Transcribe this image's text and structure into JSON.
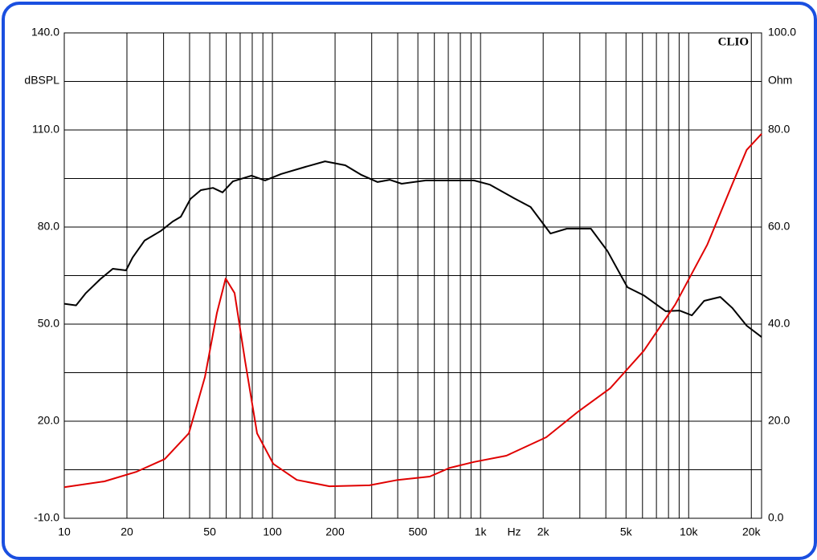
{
  "chart_data": {
    "type": "line",
    "watermark": "CLIO",
    "y_label": "dBSPL",
    "y2_label": "Ohm",
    "x_label": "Hz",
    "log_x": true,
    "grid": true,
    "xlim": [
      10,
      22400
    ],
    "xticks": [
      10,
      20,
      50,
      100,
      200,
      500,
      {
        "value": 1000,
        "label": "1k"
      },
      {
        "value": 2000,
        "label": "2k"
      },
      {
        "value": 5000,
        "label": "5k"
      },
      {
        "value": 10000,
        "label": "10k"
      },
      {
        "value": 20000,
        "label": "20k"
      }
    ],
    "xgrid": [
      10,
      20,
      30,
      40,
      50,
      60,
      70,
      80,
      90,
      100,
      200,
      300,
      400,
      500,
      600,
      700,
      800,
      900,
      1000,
      2000,
      3000,
      4000,
      5000,
      6000,
      7000,
      8000,
      9000,
      10000,
      20000
    ],
    "ylim": [
      -10,
      140
    ],
    "yticks": [
      {
        "value": -10,
        "label": "-10.0"
      },
      {
        "value": 20,
        "label": "20.0"
      },
      {
        "value": 50,
        "label": "50.0"
      },
      {
        "value": 80,
        "label": "80.0"
      },
      {
        "value": 110,
        "label": "110.0"
      },
      {
        "value": 140,
        "label": "140.0"
      }
    ],
    "ygrid": [
      -10,
      5,
      20,
      35,
      50,
      65,
      80,
      95,
      110,
      125,
      140
    ],
    "y2lim": [
      0,
      100
    ],
    "y2ticks": [
      {
        "value": 0,
        "label": "0.0"
      },
      {
        "value": 20,
        "label": "20.0"
      },
      {
        "value": 40,
        "label": "40.0"
      },
      {
        "value": 60,
        "label": "60.0"
      },
      {
        "value": 80,
        "label": "80.0"
      },
      {
        "value": 100,
        "label": "100.0"
      }
    ],
    "series": [
      {
        "color": "#000000",
        "axis": "y",
        "x": [
          10,
          11.4,
          12.7,
          14.9,
          17.1,
          19.8,
          21.3,
          24.3,
          29.1,
          33.2,
          36.3,
          40.4,
          45.3,
          51.8,
          57.6,
          64.6,
          79.4,
          92.2,
          110,
          144,
          179,
          224,
          268,
          320,
          366,
          418,
          546,
          712,
          929,
          1110,
          1450,
          1740,
          2170,
          2600,
          3390,
          4070,
          5080,
          6080,
          7760,
          9030,
          10360,
          11860,
          14180,
          16200,
          19000,
          22400
        ],
        "values": [
          56.3,
          55.8,
          59.6,
          63.9,
          67.1,
          66.6,
          70.6,
          75.8,
          78.8,
          81.7,
          83.2,
          88.7,
          91.4,
          92.1,
          90.7,
          94.1,
          95.9,
          94.4,
          96.4,
          98.6,
          100.3,
          99.1,
          96.1,
          93.9,
          94.6,
          93.4,
          94.4,
          94.4,
          94.4,
          93.1,
          88.9,
          86.2,
          78.0,
          79.5,
          79.5,
          72.6,
          61.4,
          58.9,
          54.0,
          54.2,
          52.7,
          57.2,
          58.4,
          55.0,
          49.5,
          46.0
        ]
      },
      {
        "color": "#e00000",
        "axis": "y2",
        "x": [
          10,
          15.6,
          22.3,
          30.4,
          39.7,
          47.4,
          54.1,
          59.6,
          65.8,
          73.9,
          84.4,
          101,
          131,
          188,
          293,
          400,
          570,
          712,
          929,
          1330,
          2070,
          2950,
          4200,
          6080,
          8610,
          12300,
          16200,
          19000,
          22400
        ],
        "values": [
          6.4,
          7.6,
          9.6,
          12.2,
          17.5,
          29.1,
          42.3,
          49.4,
          46.4,
          32.4,
          17.5,
          11.2,
          7.9,
          6.6,
          6.8,
          7.9,
          8.6,
          10.4,
          11.6,
          12.9,
          16.7,
          22.0,
          26.8,
          34.5,
          44.0,
          56.4,
          68.8,
          75.9,
          79.2
        ]
      }
    ]
  }
}
